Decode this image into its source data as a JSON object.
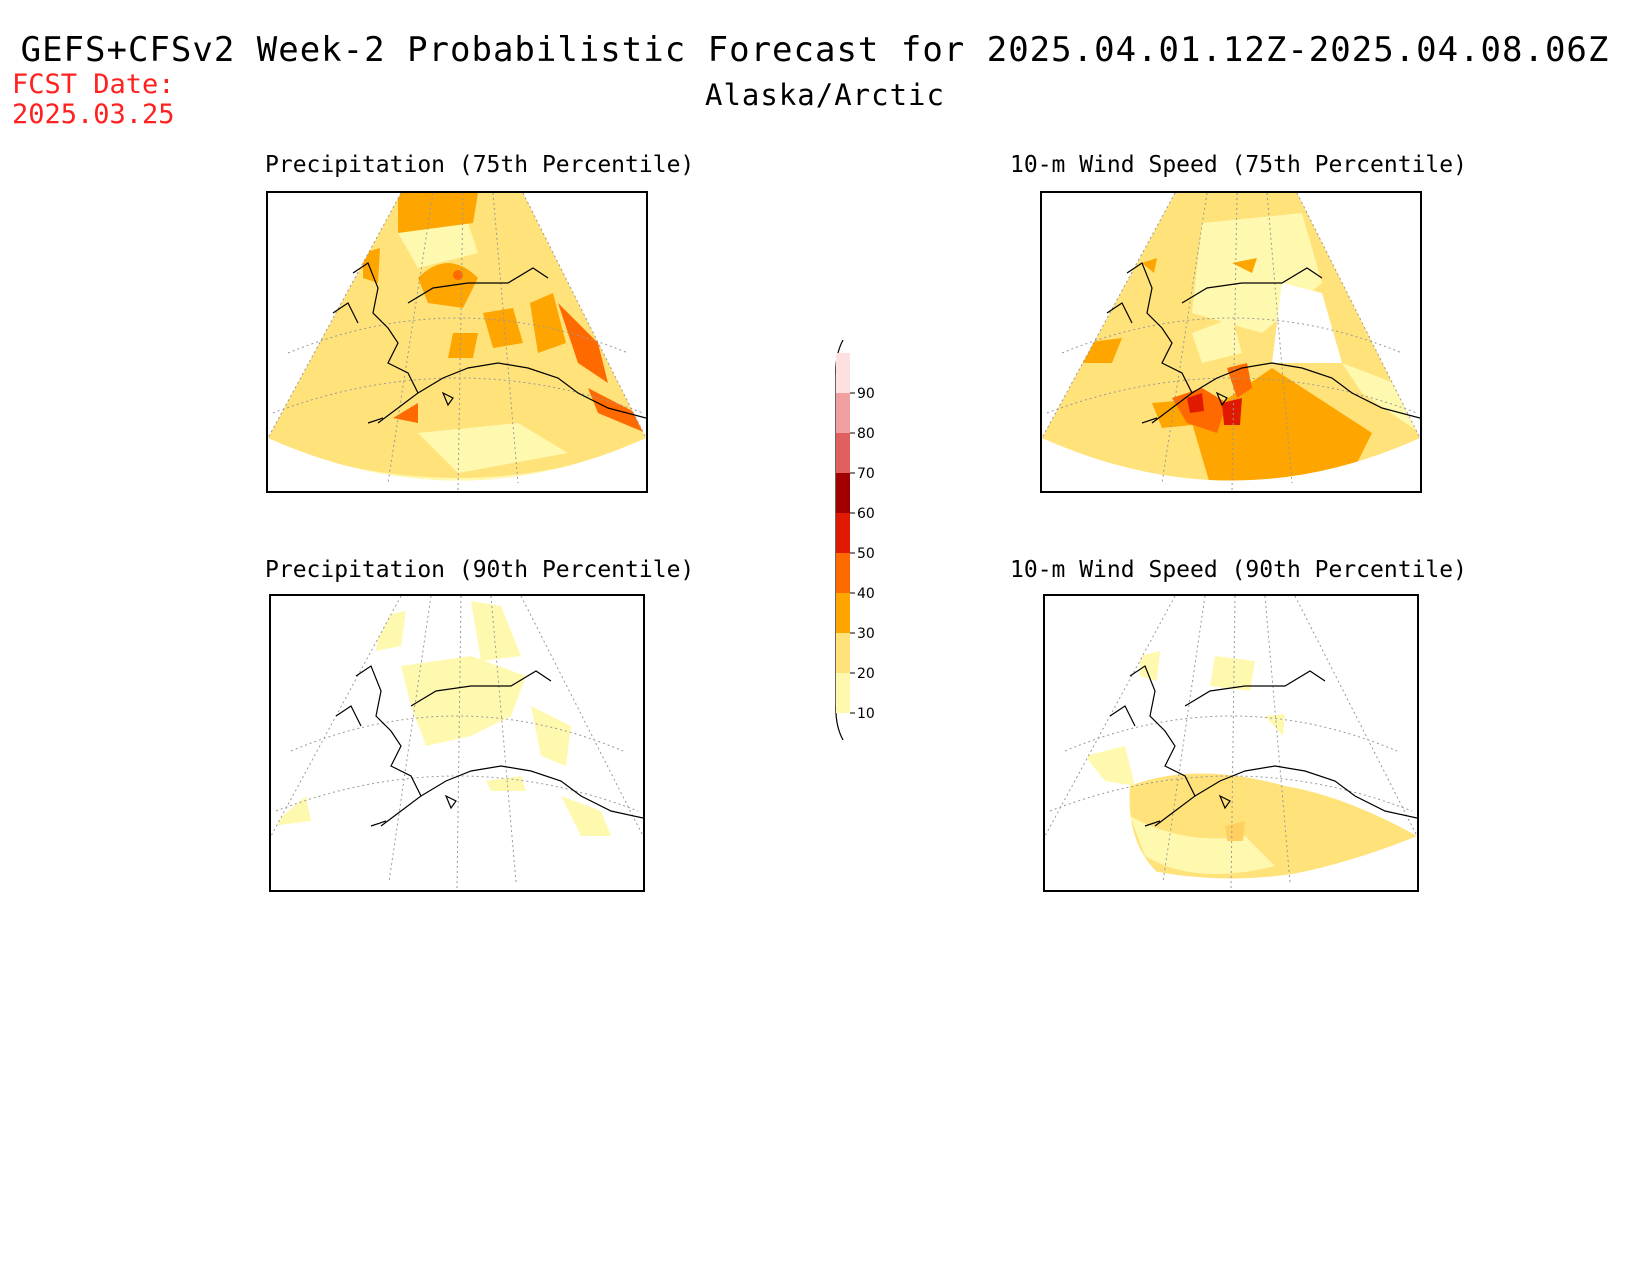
{
  "header": {
    "title": "GEFS+CFSv2 Week-2 Probabilistic Forecast for 2025.04.01.12Z-2025.04.08.06Z",
    "subtitle": "Alaska/Arctic",
    "fcst_label": "FCST Date:",
    "fcst_date": "2025.03.25"
  },
  "panels": [
    {
      "title": "Precipitation (75th Percentile)",
      "level": "high",
      "pattern": "precip75"
    },
    {
      "title": "10-m Wind Speed (75th Percentile)",
      "level": "high",
      "pattern": "wind75"
    },
    {
      "title": "Precipitation (90th Percentile)",
      "level": "low",
      "pattern": "precip90"
    },
    {
      "title": "10-m Wind Speed (90th Percentile)",
      "level": "low",
      "pattern": "wind90"
    }
  ],
  "colorbar": {
    "labels": [
      "90",
      "80",
      "70",
      "60",
      "50",
      "40",
      "30",
      "20",
      "10"
    ],
    "colors": {
      "10": "#fff9b0",
      "20": "#ffe27a",
      "30": "#ffa500",
      "40": "#ff6a00",
      "50": "#e01a00",
      "60": "#a00000",
      "70": "#e06060",
      "80": "#f0a0a0",
      "90": "#fde0e0"
    }
  }
}
